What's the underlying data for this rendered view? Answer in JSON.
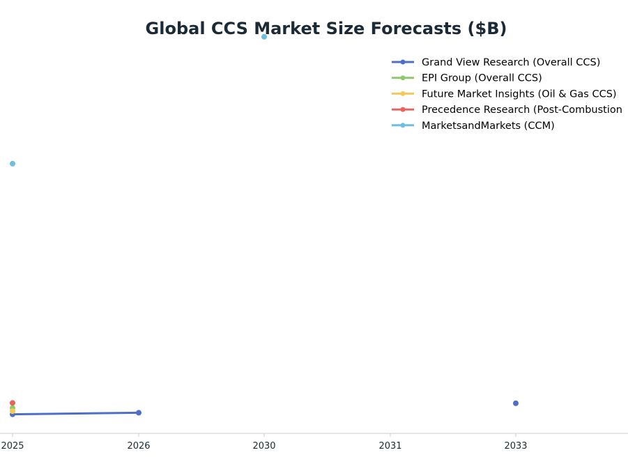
{
  "chart_data": {
    "type": "line",
    "title": "Global CCS Market Size Forecasts ($B)",
    "xlabel": "",
    "ylabel": "",
    "categories": [
      "2025",
      "2026",
      "2030",
      "2031",
      "2033"
    ],
    "ylim": [
      0,
      13
    ],
    "grid": false,
    "legend_placement": "top-right",
    "series": [
      {
        "name": "Grand View Research (Overall CCS)",
        "color": "#4e6fc9",
        "points": [
          {
            "x": "2025",
            "y": 0.6
          },
          {
            "x": "2026",
            "y": 0.65
          },
          {
            "x": "2033",
            "y": 0.95
          }
        ],
        "connected": [
          [
            "2025",
            "2026"
          ]
        ]
      },
      {
        "name": "EPI Group (Overall CCS)",
        "color": "#8cc96a",
        "points": [
          {
            "x": "2025",
            "y": 0.8
          }
        ],
        "connected": []
      },
      {
        "name": "Future Market Insights (Oil & Gas CCS)",
        "color": "#f5c95a",
        "points": [
          {
            "x": "2025",
            "y": 0.7
          }
        ],
        "connected": []
      },
      {
        "name": "Precedence Research (Post-Combustion",
        "color": "#e8635c",
        "points": [
          {
            "x": "2025",
            "y": 0.96
          }
        ],
        "connected": []
      },
      {
        "name": "MarketsandMarkets (CCM)",
        "color": "#6bbfdf",
        "points": [
          {
            "x": "2025",
            "y": 8.5
          },
          {
            "x": "2030",
            "y": 12.5
          }
        ],
        "connected": []
      }
    ]
  }
}
